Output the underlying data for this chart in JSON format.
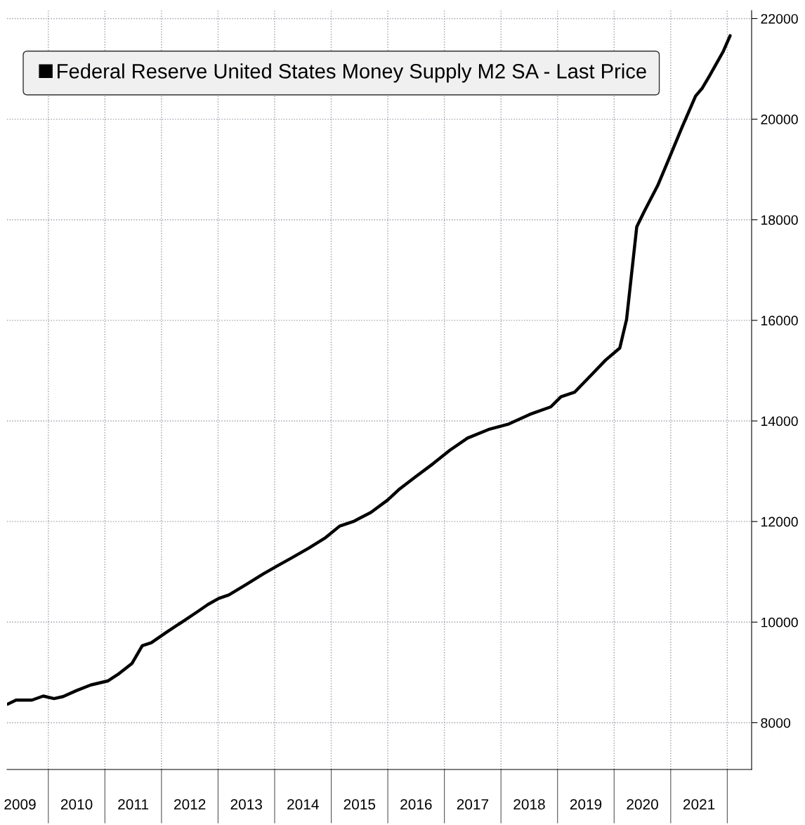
{
  "chart_data": {
    "type": "line",
    "x": [
      2009.28,
      2009.43,
      2009.71,
      2009.91,
      2010.1,
      2010.26,
      2010.5,
      2010.75,
      2011.05,
      2011.23,
      2011.48,
      2011.66,
      2011.82,
      2012.09,
      2012.36,
      2012.64,
      2012.82,
      2013.01,
      2013.19,
      2013.5,
      2013.8,
      2014.05,
      2014.29,
      2014.6,
      2014.9,
      2015.15,
      2015.39,
      2015.7,
      2016.0,
      2016.19,
      2016.49,
      2016.8,
      2017.1,
      2017.41,
      2017.78,
      2018.14,
      2018.51,
      2018.88,
      2019.06,
      2019.3,
      2019.55,
      2019.85,
      2020.1,
      2020.22,
      2020.4,
      2020.53,
      2020.77,
      2020.95,
      2021.2,
      2021.44,
      2021.56,
      2021.69,
      2021.93,
      2022.05
    ],
    "series": [
      {
        "name": "Federal Reserve United States Money Supply M2 SA - Last Price",
        "color": "#000000",
        "values": [
          8370,
          8450,
          8450,
          8530,
          8480,
          8520,
          8640,
          8750,
          8830,
          8960,
          9180,
          9530,
          9590,
          9800,
          10000,
          10210,
          10350,
          10470,
          10540,
          10750,
          10960,
          11120,
          11270,
          11470,
          11680,
          11910,
          12000,
          12180,
          12430,
          12630,
          12890,
          13150,
          13420,
          13660,
          13830,
          13940,
          14130,
          14280,
          14480,
          14570,
          14860,
          15210,
          15450,
          16020,
          17860,
          18160,
          18680,
          19160,
          19840,
          20460,
          20620,
          20870,
          21350,
          21660
        ]
      }
    ],
    "xlim": [
      2009.27,
      2022.43
    ],
    "xticks": [
      {
        "value": 2009.5,
        "label": "2009"
      },
      {
        "value": 2010,
        "label": null
      },
      {
        "value": 2010.5,
        "label": "2010"
      },
      {
        "value": 2011,
        "label": null
      },
      {
        "value": 2011.5,
        "label": "2011"
      },
      {
        "value": 2012,
        "label": null
      },
      {
        "value": 2012.5,
        "label": "2012"
      },
      {
        "value": 2013,
        "label": null
      },
      {
        "value": 2013.5,
        "label": "2013"
      },
      {
        "value": 2014,
        "label": null
      },
      {
        "value": 2014.5,
        "label": "2014"
      },
      {
        "value": 2015,
        "label": null
      },
      {
        "value": 2015.5,
        "label": "2015"
      },
      {
        "value": 2016,
        "label": null
      },
      {
        "value": 2016.5,
        "label": "2016"
      },
      {
        "value": 2017,
        "label": null
      },
      {
        "value": 2017.5,
        "label": "2017"
      },
      {
        "value": 2018,
        "label": null
      },
      {
        "value": 2018.5,
        "label": "2018"
      },
      {
        "value": 2019,
        "label": null
      },
      {
        "value": 2019.5,
        "label": "2019"
      },
      {
        "value": 2020,
        "label": null
      },
      {
        "value": 2020.5,
        "label": "2020"
      },
      {
        "value": 2021,
        "label": null
      },
      {
        "value": 2021.5,
        "label": "2021"
      },
      {
        "value": 2022,
        "label": null
      }
    ],
    "ylim": [
      7070,
      22160
    ],
    "yticks": [
      8000,
      10000,
      12000,
      14000,
      16000,
      18000,
      20000,
      22000
    ],
    "grid": true,
    "legend": "top left",
    "line_style": "solid",
    "marker": "none"
  }
}
